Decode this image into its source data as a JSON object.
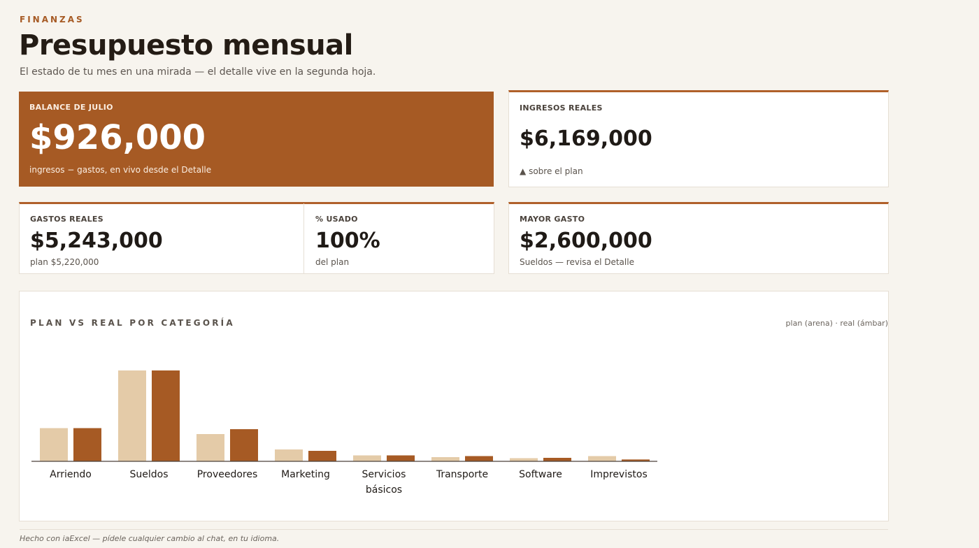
{
  "header": {
    "eyebrow": "FINANZAS",
    "title": "Presupuesto mensual",
    "subtitle": "El estado de tu mes en una mirada — el detalle vive en la segunda hoja."
  },
  "kpis": {
    "balance": {
      "label": "BALANCE DE JULIO",
      "value": "$926,000",
      "sub": "ingresos − gastos, en vivo desde el Detalle"
    },
    "ingresos": {
      "label": "INGRESOS REALES",
      "value": "$6,169,000",
      "sub": "sobre el plan",
      "trend_icon": "triangle-up-icon"
    },
    "gastos": {
      "label": "GASTOS REALES",
      "value": "$5,243,000",
      "sub": "plan $5,220,000"
    },
    "usado": {
      "label": "% USADO",
      "value": "100%",
      "sub": "del plan"
    },
    "mayor": {
      "label": "MAYOR GASTO",
      "value": "$2,600,000",
      "sub": "Sueldos — revisa el Detalle"
    }
  },
  "chart_section": {
    "title": "PLAN VS REAL POR CATEGORÍA",
    "legend": "plan (arena) · real (ámbar)"
  },
  "chart_data": {
    "type": "bar",
    "categories": [
      "Arriendo",
      "Sueldos",
      "Proveedores",
      "Marketing",
      "Servicios básicos",
      "Transporte",
      "Software",
      "Imprevistos"
    ],
    "series": [
      {
        "name": "plan",
        "color": "#e4cba8",
        "values": [
          950000,
          2600000,
          780000,
          340000,
          170000,
          120000,
          90000,
          150000
        ]
      },
      {
        "name": "real",
        "color": "#a65a24",
        "values": [
          950000,
          2600000,
          920000,
          300000,
          170000,
          150000,
          100000,
          53000
        ]
      }
    ],
    "ylim": [
      0,
      2600000
    ]
  },
  "footer": {
    "text": "Hecho con iaExcel — pídele cualquier cambio al chat, en tu idioma."
  },
  "colors": {
    "accent": "#a65a24",
    "sand": "#e4cba8",
    "background": "#f7f4ee"
  }
}
